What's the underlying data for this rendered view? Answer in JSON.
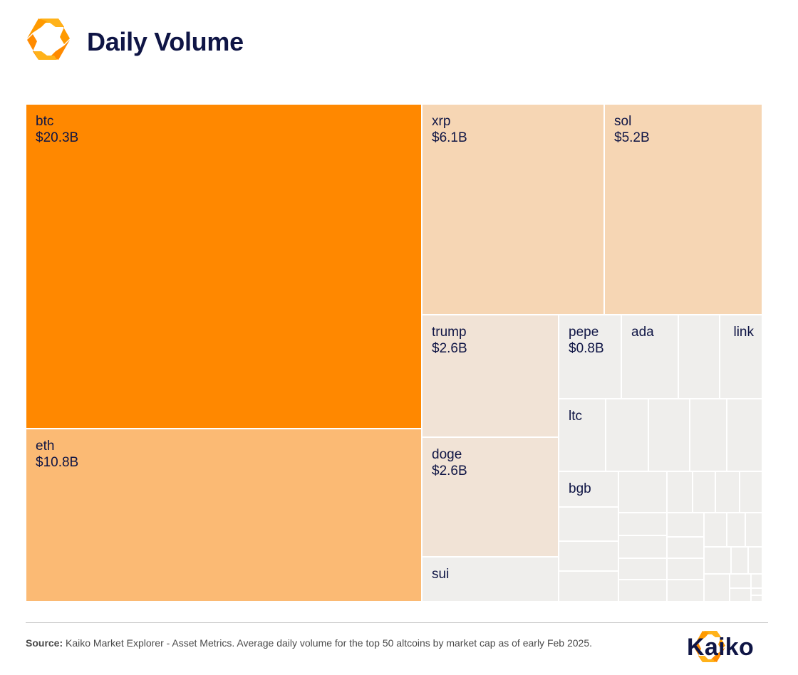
{
  "header": {
    "title": "Daily Volume"
  },
  "footer": {
    "source_label": "Source:",
    "source_text": "Kaiko Market Explorer - Asset Metrics. Average daily volume for the top 50 altcoins by market cap as of early Feb 2025.",
    "brand": "Kaiko"
  },
  "colors": {
    "btc": "#ff8800",
    "eth": "#fbba74",
    "tier2": "#f6d6b4",
    "tier3": "#f1e3d6",
    "small": "#efeeec",
    "text": "#0f1545"
  },
  "chart_data": {
    "type": "treemap",
    "title": "Daily Volume",
    "unit": "USD billions",
    "items": [
      {
        "name": "btc",
        "label": "btc",
        "value_label": "$20.3B",
        "value": 20.3,
        "color": "btc"
      },
      {
        "name": "eth",
        "label": "eth",
        "value_label": "$10.8B",
        "value": 10.8,
        "color": "eth"
      },
      {
        "name": "xrp",
        "label": "xrp",
        "value_label": "$6.1B",
        "value": 6.1,
        "color": "tier2"
      },
      {
        "name": "sol",
        "label": "sol",
        "value_label": "$5.2B",
        "value": 5.2,
        "color": "tier2"
      },
      {
        "name": "trump",
        "label": "trump",
        "value_label": "$2.6B",
        "value": 2.6,
        "color": "tier3"
      },
      {
        "name": "doge",
        "label": "doge",
        "value_label": "$2.6B",
        "value": 2.6,
        "color": "tier3"
      },
      {
        "name": "sui",
        "label": "sui",
        "value_label": "",
        "value": null,
        "color": "small"
      },
      {
        "name": "pepe",
        "label": "pepe",
        "value_label": "$0.8B",
        "value": 0.8,
        "color": "small"
      },
      {
        "name": "ada",
        "label": "ada",
        "value_label": "",
        "value": null,
        "color": "small"
      },
      {
        "name": "link",
        "label": "link",
        "value_label": "",
        "value": null,
        "color": "small"
      },
      {
        "name": "ltc",
        "label": "ltc",
        "value_label": "",
        "value": null,
        "color": "small"
      },
      {
        "name": "bgb",
        "label": "bgb",
        "value_label": "",
        "value": null,
        "color": "small"
      }
    ]
  }
}
